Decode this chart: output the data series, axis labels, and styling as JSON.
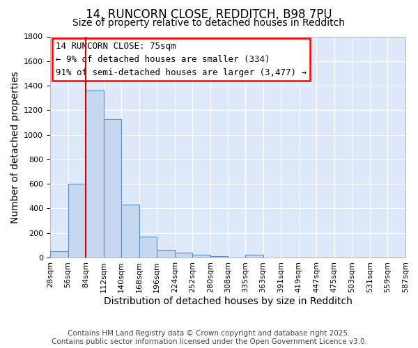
{
  "title1": "14, RUNCORN CLOSE, REDDITCH, B98 7PU",
  "title2": "Size of property relative to detached houses in Redditch",
  "xlabel": "Distribution of detached houses by size in Redditch",
  "ylabel": "Number of detached properties",
  "bin_edges": [
    28,
    56,
    84,
    112,
    140,
    168,
    196,
    224,
    252,
    280,
    308,
    335,
    363,
    391,
    419,
    447,
    475,
    503,
    531,
    559,
    587
  ],
  "bar_heights": [
    50,
    600,
    1360,
    1130,
    430,
    170,
    65,
    40,
    20,
    10,
    0,
    20,
    0,
    0,
    0,
    0,
    0,
    0,
    0,
    0
  ],
  "bar_color": "#c5d8f0",
  "bar_edge_color": "#5b8ec4",
  "bg_color": "#dde8f8",
  "grid_color": "#ffffff",
  "vline_x": 84,
  "vline_color": "#cc0000",
  "annotation_text": "14 RUNCORN CLOSE: 75sqm\n← 9% of detached houses are smaller (334)\n91% of semi-detached houses are larger (3,477) →",
  "ylim": [
    0,
    1800
  ],
  "yticks": [
    0,
    200,
    400,
    600,
    800,
    1000,
    1200,
    1400,
    1600,
    1800
  ],
  "xtick_labels": [
    "28sqm",
    "56sqm",
    "84sqm",
    "112sqm",
    "140sqm",
    "168sqm",
    "196sqm",
    "224sqm",
    "252sqm",
    "280sqm",
    "308sqm",
    "335sqm",
    "363sqm",
    "391sqm",
    "419sqm",
    "447sqm",
    "475sqm",
    "503sqm",
    "531sqm",
    "559sqm",
    "587sqm"
  ],
  "footer_text": "Contains HM Land Registry data © Crown copyright and database right 2025.\nContains public sector information licensed under the Open Government Licence v3.0.",
  "title_fontsize": 12,
  "subtitle_fontsize": 10,
  "axis_label_fontsize": 10,
  "tick_fontsize": 8,
  "annotation_fontsize": 9,
  "footer_fontsize": 7.5
}
